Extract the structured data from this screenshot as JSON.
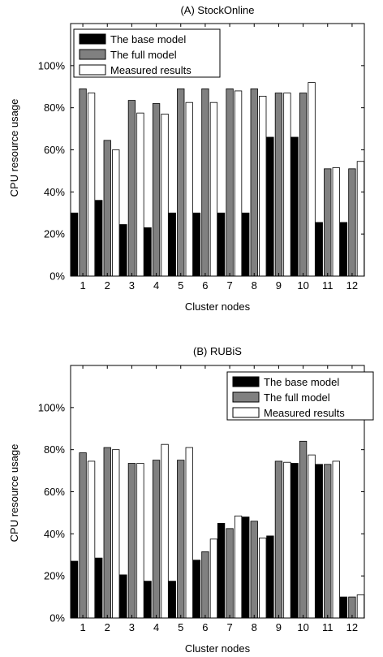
{
  "chart_data": [
    {
      "type": "bar",
      "title": "(A) StockOnline",
      "xlabel": "Cluster nodes",
      "ylabel": "CPU resource usage",
      "ylim": [
        0,
        120
      ],
      "yticks": [
        0,
        20,
        40,
        60,
        80,
        100
      ],
      "ytick_labels": [
        "0%",
        "20%",
        "40%",
        "60%",
        "80%",
        "100%"
      ],
      "categories": [
        "1",
        "2",
        "3",
        "4",
        "5",
        "6",
        "7",
        "8",
        "9",
        "10",
        "11",
        "12"
      ],
      "legend_position": "top-left",
      "grid": false,
      "series": [
        {
          "name": "The base model",
          "color": "#000000",
          "values": [
            30,
            36,
            24.5,
            23,
            30,
            30,
            30,
            30,
            66,
            66,
            25.5,
            25.5
          ]
        },
        {
          "name": "The full model",
          "color": "#808080",
          "values": [
            89,
            64.5,
            83.5,
            82,
            89,
            89,
            89,
            89,
            87,
            87,
            51,
            51
          ]
        },
        {
          "name": "Measured results",
          "color": "#ffffff",
          "values": [
            87,
            60,
            77.5,
            77,
            82.5,
            82.5,
            88,
            85.5,
            87,
            92,
            51.5,
            54.5
          ]
        }
      ]
    },
    {
      "type": "bar",
      "title": "(B) RUBiS",
      "xlabel": "Cluster nodes",
      "ylabel": "CPU resource usage",
      "ylim": [
        0,
        120
      ],
      "yticks": [
        0,
        20,
        40,
        60,
        80,
        100
      ],
      "ytick_labels": [
        "0%",
        "20%",
        "40%",
        "60%",
        "80%",
        "100%"
      ],
      "categories": [
        "1",
        "2",
        "3",
        "4",
        "5",
        "6",
        "7",
        "8",
        "9",
        "10",
        "11",
        "12"
      ],
      "legend_position": "top-right",
      "grid": false,
      "series": [
        {
          "name": "The base model",
          "color": "#000000",
          "values": [
            27,
            28.5,
            20.5,
            17.5,
            17.5,
            27.5,
            45,
            48,
            39,
            73.5,
            73,
            10
          ]
        },
        {
          "name": "The full model",
          "color": "#808080",
          "values": [
            78.5,
            81,
            73.5,
            75,
            75,
            31.5,
            42.5,
            46,
            74.5,
            84,
            73,
            10
          ]
        },
        {
          "name": "Measured results",
          "color": "#ffffff",
          "values": [
            74.5,
            80,
            73.5,
            82.5,
            81,
            37.5,
            48.5,
            38,
            74,
            77.5,
            74.5,
            11
          ]
        }
      ]
    }
  ]
}
